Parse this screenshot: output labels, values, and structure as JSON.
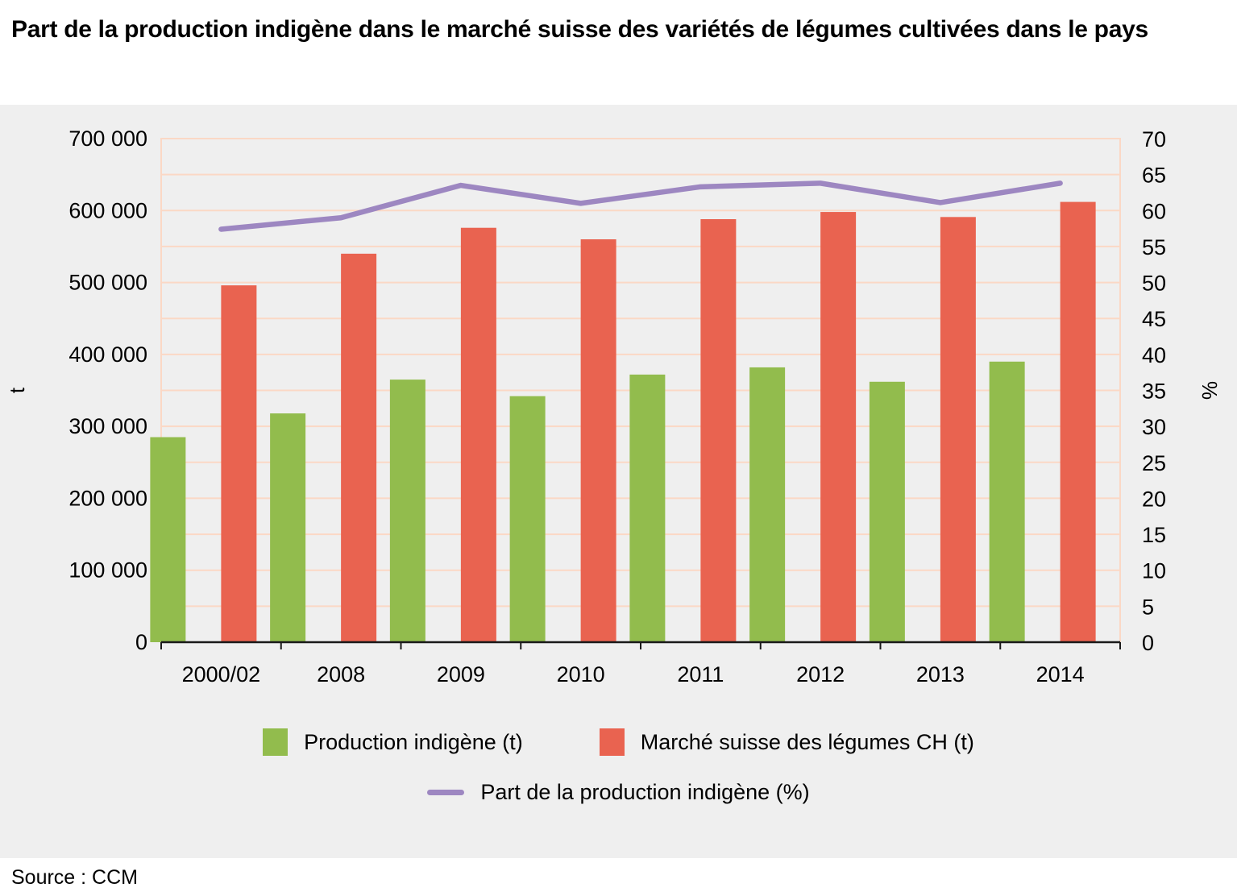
{
  "page": {
    "title": "Part de la production indigène dans le marché suisse des variétés de légumes cultivées dans le pays",
    "source": "Source : CCM"
  },
  "colors": {
    "panel_bg": "#efefef",
    "grid": "#fbd8c5",
    "axis": "#1a1a1a",
    "text": "#000000"
  },
  "chart_data": {
    "type": "bar",
    "subtype": "grouped-bars-with-line",
    "title": "Part de la production indigène dans le marché suisse des variétés de légumes cultivées dans le pays",
    "categories": [
      "2000/02",
      "2008",
      "2009",
      "2010",
      "2011",
      "2012",
      "2013",
      "2014"
    ],
    "series": [
      {
        "name": "Production indigène (t)",
        "type": "bar",
        "axis": "left",
        "color": "#92bc4d",
        "values": [
          285000,
          318000,
          365000,
          342000,
          372000,
          382000,
          362000,
          390000
        ]
      },
      {
        "name": "Marché suisse des légumes CH (t)",
        "type": "bar",
        "axis": "left",
        "color": "#e96350",
        "values": [
          496000,
          540000,
          576000,
          560000,
          588000,
          598000,
          591000,
          612000
        ]
      },
      {
        "name": "Part de la production indigène (%)",
        "type": "line",
        "axis": "right",
        "color": "#9d87c1",
        "values": [
          57.4,
          59.0,
          63.5,
          61.0,
          63.3,
          63.8,
          61.1,
          63.8
        ]
      }
    ],
    "left_axis": {
      "label": "t",
      "min": 0,
      "max": 700000,
      "step": 100000
    },
    "right_axis": {
      "label": "%",
      "min": 0,
      "max": 70,
      "step": 5
    },
    "grid": true,
    "legend_position": "bottom"
  }
}
